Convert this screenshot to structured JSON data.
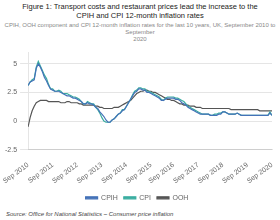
{
  "chart_data": {
    "type": "line",
    "title": "Figure 1: Transport costs and restaurant prices lead the increase to the\nCPIH and CPI 12-month inflation rates",
    "subtitle": "CPIH, OOH component and CPI 12-month inflation rates for the last 10 years, UK, September 2010 to September\n2020",
    "source": "Source: Office for National Statistics – Consumer price inflation",
    "categories": [
      "Sep 2010",
      null,
      null,
      null,
      null,
      null,
      null,
      null,
      null,
      null,
      null,
      null,
      "Sep 2011",
      null,
      null,
      null,
      null,
      null,
      null,
      null,
      null,
      null,
      null,
      null,
      "Sep 2012",
      null,
      null,
      null,
      null,
      null,
      null,
      null,
      null,
      null,
      null,
      null,
      "Sep 2013",
      null,
      null,
      null,
      null,
      null,
      null,
      null,
      null,
      null,
      null,
      null,
      "Sep 2014",
      null,
      null,
      null,
      null,
      null,
      null,
      null,
      null,
      null,
      null,
      null,
      "Sep 2015",
      null,
      null,
      null,
      null,
      null,
      null,
      null,
      null,
      null,
      null,
      "Sep 2016",
      null,
      null,
      null,
      null,
      null,
      null,
      null,
      null,
      null,
      null,
      null,
      "Sep 2017",
      null,
      null,
      null,
      null,
      null,
      null,
      null,
      null,
      null,
      null,
      null,
      "Sep 2018",
      null,
      null,
      null,
      null,
      null,
      null,
      null,
      null,
      null,
      null,
      null,
      "Sep 2019",
      null,
      null,
      null,
      null,
      null,
      null,
      null,
      null,
      null,
      null,
      null,
      "Sep 2020"
    ],
    "series": [
      {
        "name": "CPIH",
        "color": "#4472b8",
        "values": [
          3.1,
          3.4,
          3.5,
          3.6,
          4.6,
          5.0,
          4.7,
          4.3,
          3.8,
          3.5,
          3.1,
          2.8,
          2.7,
          2.6,
          2.6,
          2.6,
          2.5,
          2.4,
          2.3,
          2.2,
          2.2,
          2.1,
          2.0,
          2.0,
          1.9,
          1.8,
          1.7,
          1.5,
          1.5,
          1.6,
          1.5,
          1.5,
          1.4,
          1.2,
          1.1,
          0.8,
          0.6,
          0.4,
          0.1,
          -0.1,
          -0.1,
          0.1,
          0.2,
          0.4,
          0.6,
          0.7,
          0.9,
          1.0,
          1.3,
          1.6,
          1.9,
          2.2,
          2.5,
          2.6,
          2.8,
          2.8,
          2.7,
          2.7,
          2.5,
          2.5,
          2.4,
          2.3,
          2.2,
          2.1,
          2.0,
          1.8,
          1.8,
          1.9,
          2.0,
          2.0,
          2.0,
          2.0,
          1.9,
          1.9,
          1.8,
          1.6,
          1.5,
          1.4,
          1.2,
          1.1,
          1.0,
          0.9,
          0.8,
          0.7,
          0.6,
          0.6,
          0.6,
          0.6,
          0.6,
          0.5,
          0.5,
          0.5,
          0.5,
          0.6,
          0.6,
          0.8,
          0.8,
          0.7,
          0.6,
          0.6,
          0.6,
          0.6,
          0.7,
          0.6,
          0.5,
          0.5,
          0.5,
          0.5,
          0.5,
          0.5,
          0.5,
          0.5,
          0.5,
          0.5,
          0.5,
          0.5,
          0.5,
          0.5,
          0.7,
          0.5
        ]
      },
      {
        "name": "CPI",
        "color": "#3aada0",
        "values": [
          3.1,
          3.4,
          3.6,
          3.7,
          4.7,
          5.2,
          4.8,
          4.4,
          4.0,
          3.7,
          3.2,
          2.8,
          2.8,
          2.6,
          2.6,
          2.7,
          2.6,
          2.4,
          2.4,
          2.4,
          2.3,
          2.2,
          2.1,
          2.1,
          2.0,
          1.9,
          1.7,
          1.5,
          1.5,
          1.7,
          1.6,
          1.5,
          1.5,
          1.2,
          1.0,
          0.7,
          0.3,
          0.0,
          -0.1,
          -0.1,
          -0.1,
          0.1,
          0.2,
          0.4,
          0.6,
          0.7,
          1.0,
          1.0,
          1.3,
          1.6,
          1.9,
          2.3,
          2.6,
          2.7,
          2.9,
          2.9,
          2.8,
          2.8,
          2.6,
          2.6,
          2.5,
          2.4,
          2.3,
          2.2,
          2.1,
          1.9,
          1.8,
          2.0,
          2.1,
          2.1,
          2.1,
          2.1,
          2.0,
          2.0,
          1.9,
          1.8,
          1.7,
          1.5,
          1.3,
          1.2,
          1.1,
          1.0,
          0.9,
          0.8,
          0.7,
          0.6,
          0.6,
          0.6,
          0.6,
          0.5,
          0.5,
          0.6,
          0.6,
          0.7,
          0.7,
          0.8,
          0.8,
          0.7,
          0.6,
          0.6,
          0.6,
          0.6,
          0.7,
          0.6,
          0.5,
          0.5,
          0.5,
          0.5,
          0.5,
          0.5,
          0.5,
          0.5,
          0.5,
          0.5,
          0.5,
          0.5,
          0.5,
          0.5,
          0.8,
          0.5
        ]
      },
      {
        "name": "OOH",
        "color": "#555555",
        "values": [
          -0.5,
          0.3,
          0.9,
          1.3,
          1.6,
          1.7,
          1.8,
          1.8,
          1.8,
          1.8,
          1.7,
          1.7,
          1.7,
          1.7,
          1.7,
          1.7,
          1.6,
          1.6,
          1.6,
          1.7,
          1.7,
          1.6,
          1.6,
          1.6,
          1.6,
          1.5,
          1.5,
          1.4,
          1.4,
          1.4,
          1.4,
          1.4,
          1.4,
          1.3,
          1.3,
          1.2,
          1.2,
          1.1,
          1.1,
          1.1,
          1.1,
          1.1,
          1.2,
          1.2,
          1.2,
          1.3,
          1.4,
          1.5,
          1.6,
          1.7,
          1.8,
          2.0,
          2.2,
          2.4,
          2.5,
          2.6,
          2.6,
          2.7,
          2.7,
          2.6,
          2.6,
          2.5,
          2.5,
          2.4,
          2.3,
          2.2,
          2.1,
          2.0,
          1.9,
          1.9,
          1.8,
          1.8,
          1.7,
          1.6,
          1.5,
          1.5,
          1.4,
          1.4,
          1.4,
          1.3,
          1.3,
          1.3,
          1.2,
          1.2,
          1.2,
          1.1,
          1.1,
          1.1,
          1.1,
          1.1,
          1.1,
          1.1,
          1.1,
          1.1,
          1.1,
          1.1,
          1.1,
          1.1,
          1.1,
          1.0,
          1.0,
          1.0,
          1.0,
          1.0,
          1.0,
          1.0,
          1.0,
          1.0,
          1.0,
          1.0,
          1.0,
          1.0,
          1.0,
          0.9,
          0.9,
          0.9,
          0.9,
          0.9,
          0.9,
          0.9
        ]
      }
    ],
    "ylim": [
      -2.5,
      6
    ],
    "yticks": [
      -2.5,
      0,
      2.5,
      5
    ],
    "grid": "y",
    "legend": "bottom"
  }
}
